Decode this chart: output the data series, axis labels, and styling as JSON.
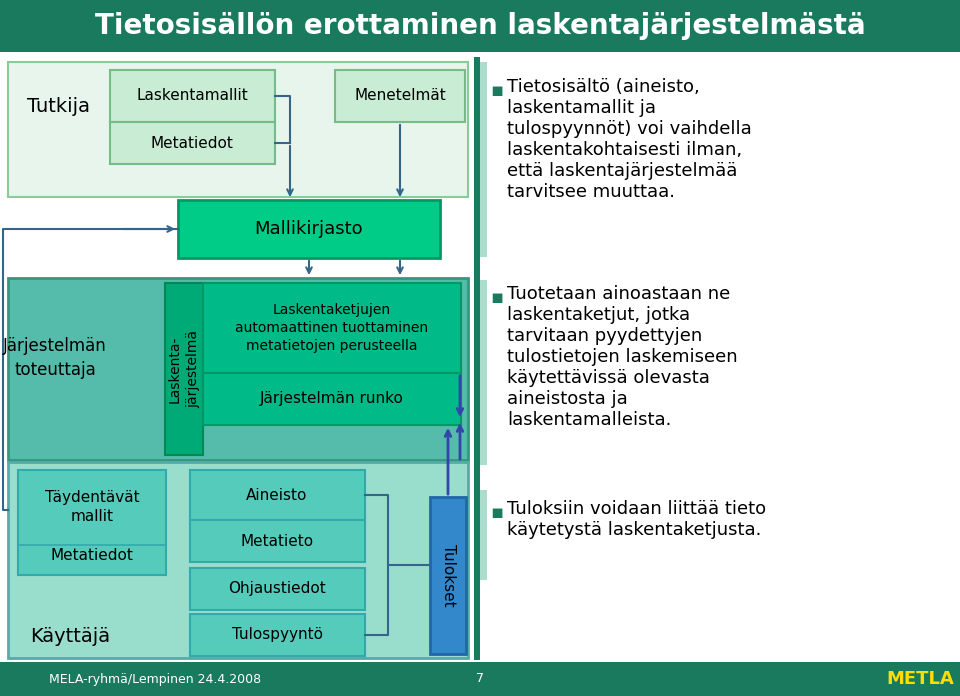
{
  "title": "Tietosisällön erottaminen laskentajärjestelmästä",
  "title_bg": "#1a7a5e",
  "title_color": "#ffffff",
  "footer_bg": "#1a7a5e",
  "footer_left": "MELA-ryhmä/Lempinen 24.4.2008",
  "footer_page": "7",
  "footer_metla": "METLA",
  "bg_white": "#ffffff",
  "tutkija_region_bg": "#e8f5ec",
  "tutkija_region_border": "#88cc99",
  "lm_box_bg": "#c8ecd4",
  "lm_box_border": "#77bb88",
  "mallikirjasto_bg": "#00cc88",
  "mallikirjasto_border": "#009966",
  "laskjarj_outer_bg": "#55bbaa",
  "laskjarj_outer_border": "#33997a",
  "laskjarj_vert_bg": "#00aa77",
  "laskjarj_vert_border": "#008855",
  "inner_box_bg": "#00bb88",
  "inner_box_border": "#009966",
  "kayttaja_bg": "#99ddcc",
  "kayttaja_border": "#55aaaa",
  "kayttaja_box_bg": "#55ccbb",
  "kayttaja_box_border": "#33aaaa",
  "tulokset_bg": "#3388cc",
  "tulokset_border": "#2266aa",
  "arrow_color": "#336688",
  "arrow_blue": "#3344aa",
  "right_bar_color": "#1a7a5e",
  "right_bar2_color": "#55bbaa",
  "bullet_color": "#1a7a5e",
  "text_color": "#000000",
  "tutkija_label": "Tutkija",
  "laskentamallit_label": "Laskentamallit",
  "metatiedot_top_label": "Metatiedot",
  "menetelmat_label": "Menetelmät",
  "mallikirjasto_label": "Mallikirjasto",
  "jarjestelma_toteuttaja_label": "Järjestelmän\ntoteuttaja",
  "laskentajarjestelma_label": "Laskenta-\njärjestelmä",
  "laskentaketjut_label": "Laskentaketjujen\nautomaattinen tuottaminen\nmetatietojen perusteella",
  "jarjestelman_runko_label": "Järjestelmän runko",
  "kayttaja_label": "Käyttäjä",
  "taydentavat_label": "Täydentävät\nmallit",
  "metatiedot_bot_label": "Metatiedot",
  "aineisto_label": "Aineisto",
  "metatieto_label": "Metatieto",
  "ohjaustiedot_label": "Ohjaustiedot",
  "tulospyynto_label": "Tulospyyntö",
  "tulokset_label": "Tulokset",
  "b1_lines": [
    "Tietosisältö (aineisto,",
    "laskentamallit ja",
    "tulospyynnöt) voi vaihdella",
    "laskentakohtaisesti ilman,",
    "että laskentajärjestelmää",
    "tarvitsee muuttaa."
  ],
  "b2_lines": [
    "Tuotetaan ainoastaan ne",
    "laskentaketjut, jotka",
    "tarvitaan pyydettyjen",
    "tulostietojen laskemiseen",
    "käytettävissä olevasta",
    "aineistosta ja",
    "laskentamalleista."
  ],
  "b3_lines": [
    "Tuloksiin voidaan liittää tieto",
    "käytetystä laskentaketjusta."
  ]
}
